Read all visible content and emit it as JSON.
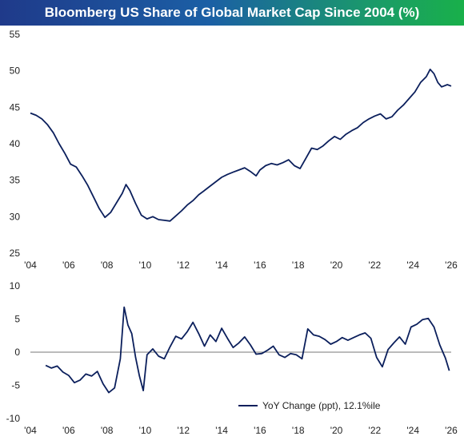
{
  "title": "Bloomberg US Share of Global Market Cap Since 2004 (%)",
  "colors": {
    "series": "#0b1f5c",
    "zero_line": "#777777",
    "text": "#222222"
  },
  "chart_data": [
    {
      "type": "line",
      "title": "Bloomberg US Share of Global Market Cap Since 2004 (%)",
      "xlabel": "",
      "ylabel": "",
      "xlim": [
        2004,
        2026
      ],
      "ylim": [
        25,
        55
      ],
      "x_ticks": [
        "'04",
        "'06",
        "'08",
        "'10",
        "'12",
        "'14",
        "'16",
        "'18",
        "'20",
        "'22",
        "'24",
        "'26"
      ],
      "y_ticks": [
        25,
        30,
        35,
        40,
        45,
        50,
        55
      ],
      "grid": false,
      "series": [
        {
          "name": "",
          "x": [
            2004.0,
            2004.3,
            2004.6,
            2004.9,
            2005.2,
            2005.5,
            2005.8,
            2006.1,
            2006.4,
            2006.7,
            2007.0,
            2007.3,
            2007.6,
            2007.9,
            2008.2,
            2008.5,
            2008.8,
            2009.0,
            2009.2,
            2009.5,
            2009.8,
            2010.1,
            2010.4,
            2010.7,
            2011.0,
            2011.3,
            2011.6,
            2011.9,
            2012.2,
            2012.5,
            2012.8,
            2013.1,
            2013.4,
            2013.7,
            2014.0,
            2014.3,
            2014.6,
            2014.9,
            2015.2,
            2015.5,
            2015.8,
            2016.0,
            2016.3,
            2016.6,
            2016.9,
            2017.2,
            2017.5,
            2017.8,
            2018.1,
            2018.4,
            2018.7,
            2019.0,
            2019.3,
            2019.6,
            2019.9,
            2020.2,
            2020.5,
            2020.8,
            2021.1,
            2021.4,
            2021.7,
            2022.0,
            2022.3,
            2022.6,
            2022.9,
            2023.2,
            2023.5,
            2023.8,
            2024.1,
            2024.4,
            2024.7,
            2024.9,
            2025.1,
            2025.3,
            2025.5,
            2025.8,
            2026.0
          ],
          "values": [
            44.2,
            43.9,
            43.4,
            42.6,
            41.5,
            40.0,
            38.7,
            37.2,
            36.8,
            35.6,
            34.3,
            32.7,
            31.1,
            29.9,
            30.6,
            31.9,
            33.2,
            34.4,
            33.6,
            31.8,
            30.2,
            29.7,
            30.0,
            29.6,
            29.5,
            29.4,
            30.1,
            30.8,
            31.6,
            32.2,
            33.0,
            33.6,
            34.2,
            34.8,
            35.4,
            35.8,
            36.1,
            36.4,
            36.7,
            36.2,
            35.6,
            36.4,
            37.0,
            37.3,
            37.1,
            37.4,
            37.8,
            37.0,
            36.6,
            38.0,
            39.4,
            39.2,
            39.7,
            40.4,
            41.0,
            40.6,
            41.3,
            41.8,
            42.2,
            42.9,
            43.4,
            43.8,
            44.1,
            43.4,
            43.7,
            44.6,
            45.3,
            46.2,
            47.1,
            48.4,
            49.2,
            50.2,
            49.6,
            48.4,
            47.8,
            48.1,
            47.9
          ]
        }
      ]
    },
    {
      "type": "line",
      "xlabel": "",
      "ylabel": "",
      "xlim": [
        2004,
        2026
      ],
      "ylim": [
        -10,
        10
      ],
      "x_ticks": [
        "'04",
        "'06",
        "'08",
        "'10",
        "'12",
        "'14",
        "'16",
        "'18",
        "'20",
        "'22",
        "'24",
        "'26"
      ],
      "y_ticks": [
        -10,
        -5,
        0,
        5,
        10
      ],
      "legend": "bottom-right",
      "grid": false,
      "series": [
        {
          "name": "YoY Change (ppt), 12.1%ile",
          "x": [
            2004.8,
            2005.1,
            2005.4,
            2005.7,
            2006.0,
            2006.3,
            2006.6,
            2006.9,
            2007.2,
            2007.5,
            2007.8,
            2008.1,
            2008.4,
            2008.7,
            2008.9,
            2009.1,
            2009.3,
            2009.5,
            2009.7,
            2009.9,
            2010.1,
            2010.4,
            2010.7,
            2011.0,
            2011.3,
            2011.6,
            2011.9,
            2012.2,
            2012.5,
            2012.8,
            2013.1,
            2013.4,
            2013.7,
            2014.0,
            2014.3,
            2014.6,
            2014.9,
            2015.2,
            2015.5,
            2015.8,
            2016.1,
            2016.4,
            2016.7,
            2017.0,
            2017.3,
            2017.6,
            2017.9,
            2018.2,
            2018.5,
            2018.8,
            2019.1,
            2019.4,
            2019.7,
            2020.0,
            2020.3,
            2020.6,
            2020.9,
            2021.2,
            2021.5,
            2021.8,
            2022.1,
            2022.4,
            2022.7,
            2023.0,
            2023.3,
            2023.6,
            2023.9,
            2024.2,
            2024.5,
            2024.8,
            2025.1,
            2025.4,
            2025.7,
            2025.9
          ],
          "values": [
            -2.0,
            -2.4,
            -2.1,
            -3.0,
            -3.5,
            -4.6,
            -4.2,
            -3.3,
            -3.6,
            -2.9,
            -4.8,
            -6.1,
            -5.4,
            -1.0,
            6.8,
            4.1,
            2.8,
            -0.8,
            -3.6,
            -5.8,
            -0.4,
            0.5,
            -0.6,
            -1.0,
            0.8,
            2.4,
            2.0,
            3.1,
            4.5,
            2.8,
            0.9,
            2.6,
            1.6,
            3.6,
            2.1,
            0.7,
            1.4,
            2.3,
            1.1,
            -0.3,
            -0.2,
            0.3,
            0.9,
            -0.4,
            -0.8,
            -0.2,
            -0.4,
            -1.0,
            3.5,
            2.6,
            2.4,
            1.9,
            1.2,
            1.6,
            2.2,
            1.8,
            2.2,
            2.6,
            2.9,
            2.1,
            -0.8,
            -2.2,
            0.4,
            1.4,
            2.3,
            1.2,
            3.8,
            4.2,
            4.9,
            5.1,
            3.8,
            1.1,
            -0.9,
            -2.8
          ]
        }
      ]
    }
  ]
}
